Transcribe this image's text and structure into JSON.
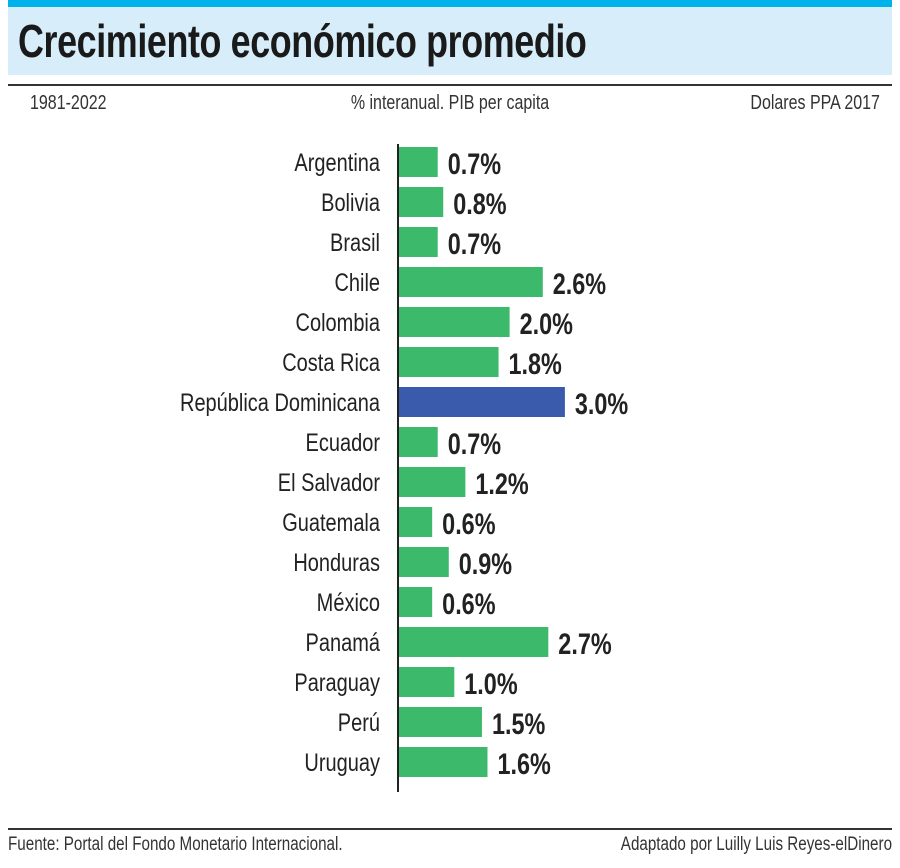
{
  "header": {
    "title": "Crecimiento económico promedio",
    "period": "1981-2022",
    "measure": "% interanual. PIB per capita",
    "unit": "Dolares PPA 2017"
  },
  "footer": {
    "source": "Fuente: Portal del Fondo Monetario Internacional.",
    "credit": "Adaptado por Luilly Luis Reyes-elDinero"
  },
  "chart_data": {
    "type": "bar",
    "orientation": "horizontal",
    "title": "Crecimiento económico promedio",
    "categories": [
      "Argentina",
      "Bolivia",
      "Brasil",
      "Chile",
      "Colombia",
      "Costa Rica",
      "República Dominicana",
      "Ecuador",
      "El Salvador",
      "Guatemala",
      "Honduras",
      "México",
      "Panamá",
      "Paraguay",
      "Perú",
      "Uruguay"
    ],
    "values": [
      0.7,
      0.8,
      0.7,
      2.6,
      2.0,
      1.8,
      3.0,
      0.7,
      1.2,
      0.6,
      0.9,
      0.6,
      2.7,
      1.0,
      1.5,
      1.6
    ],
    "labels": [
      "0.7%",
      "0.8%",
      "0.7%",
      "2.6%",
      "2.0%",
      "1.8%",
      "3.0%",
      "0.7%",
      "1.2%",
      "0.6%",
      "0.9%",
      "0.6%",
      "2.7%",
      "1.0%",
      "1.5%",
      "1.6%"
    ],
    "highlight": "República Dominicana",
    "colors": {
      "default": "#3cb96a",
      "highlight": "#3a5aab",
      "accent": "#00b2ec",
      "title_bg": "#d7eefa"
    },
    "grid": false
  }
}
